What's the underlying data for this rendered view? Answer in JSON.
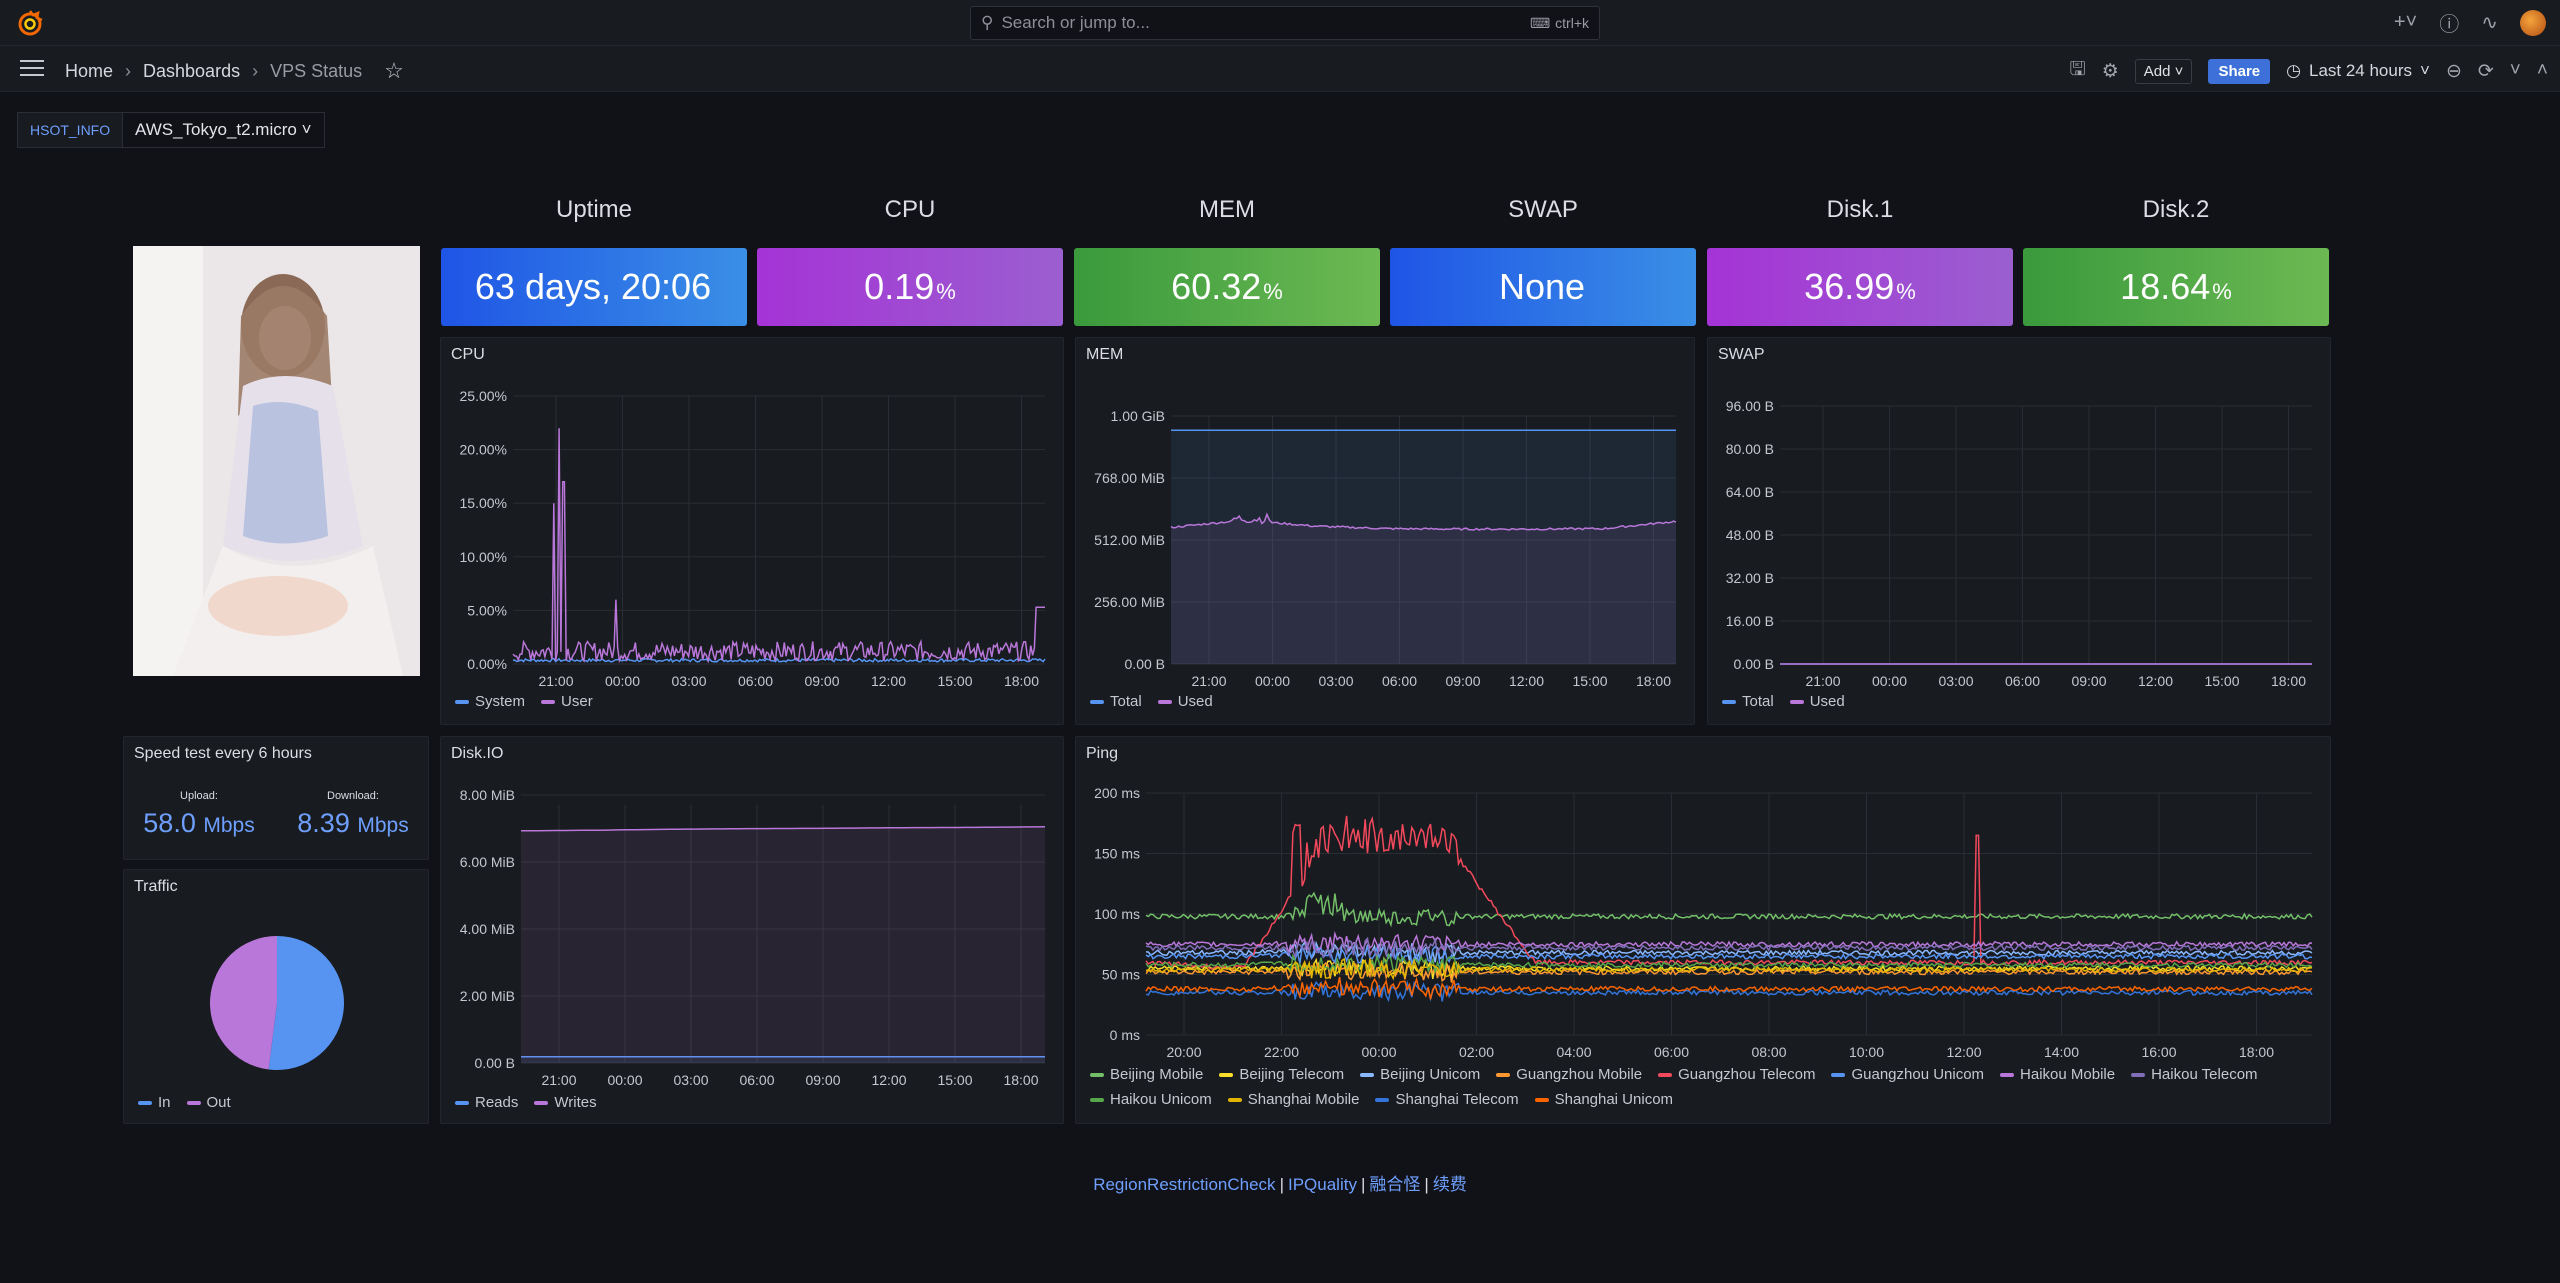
{
  "topbar": {
    "search_placeholder": "Search or jump to...",
    "shortcut": "ctrl+k"
  },
  "navbar": {
    "breadcrumbs": [
      "Home",
      "Dashboards",
      "VPS Status"
    ],
    "add_label": "Add",
    "share_label": "Share",
    "time_range": "Last 24 hours"
  },
  "variables": {
    "label": "HSOT_INFO",
    "value": "AWS_Tokyo_t2.micro"
  },
  "stats": [
    {
      "title": "Uptime",
      "value": "63 days, 20:06",
      "unit": "",
      "color": "blue"
    },
    {
      "title": "CPU",
      "value": "0.19",
      "unit": "%",
      "color": "purple"
    },
    {
      "title": "MEM",
      "value": "60.32",
      "unit": "%",
      "color": "green"
    },
    {
      "title": "SWAP",
      "value": "None",
      "unit": "",
      "color": "blue"
    },
    {
      "title": "Disk.1",
      "value": "36.99",
      "unit": "%",
      "color": "purple"
    },
    {
      "title": "Disk.2",
      "value": "18.64",
      "unit": "%",
      "color": "green"
    }
  ],
  "panels": {
    "cpu": {
      "title": "CPU"
    },
    "mem": {
      "title": "MEM"
    },
    "swap": {
      "title": "SWAP"
    },
    "diskio": {
      "title": "Disk.IO"
    },
    "ping": {
      "title": "Ping"
    },
    "speed": {
      "title": "Speed test every 6 hours",
      "upload_label": "Upload:",
      "upload_value": "58.0",
      "upload_unit": "Mbps",
      "download_label": "Download:",
      "download_value": "8.39",
      "download_unit": "Mbps"
    },
    "traffic": {
      "title": "Traffic"
    }
  },
  "chart_data": [
    {
      "type": "line",
      "id": "cpu",
      "title": "CPU",
      "x_ticks": [
        "21:00",
        "00:00",
        "03:00",
        "06:00",
        "09:00",
        "12:00",
        "15:00",
        "18:00"
      ],
      "y_ticks": [
        "0.00%",
        "5.00%",
        "10.00%",
        "15.00%",
        "20.00%",
        "25.00%"
      ],
      "ylim": [
        0,
        25
      ],
      "series": [
        {
          "name": "System",
          "color": "#5794f2",
          "values": [
            0.3,
            0.3,
            0.3,
            0.3,
            0.3,
            0.3,
            0.3,
            0.3
          ]
        },
        {
          "name": "User",
          "color": "#b877d9",
          "values": [
            0.5,
            1.5,
            22,
            1,
            1,
            0.8,
            0.9,
            5.3
          ]
        }
      ]
    },
    {
      "type": "area",
      "id": "mem",
      "title": "MEM",
      "x_ticks": [
        "21:00",
        "00:00",
        "03:00",
        "06:00",
        "09:00",
        "12:00",
        "15:00",
        "18:00"
      ],
      "y_ticks": [
        "0.00 B",
        "256.00 MiB",
        "512.00 MiB",
        "768.00 MiB",
        "1.00 GiB"
      ],
      "ylim": [
        0,
        1024
      ],
      "series": [
        {
          "name": "Total",
          "color": "#5794f2",
          "values": [
            965,
            965,
            965,
            965,
            965,
            965,
            965,
            965
          ]
        },
        {
          "name": "Used",
          "color": "#b877d9",
          "values": [
            560,
            590,
            565,
            555,
            553,
            553,
            555,
            585
          ]
        }
      ]
    },
    {
      "type": "line",
      "id": "swap",
      "title": "SWAP",
      "x_ticks": [
        "21:00",
        "00:00",
        "03:00",
        "06:00",
        "09:00",
        "12:00",
        "15:00",
        "18:00"
      ],
      "y_ticks": [
        "0.00 B",
        "16.00 B",
        "32.00 B",
        "48.00 B",
        "64.00 B",
        "80.00 B",
        "96.00 B"
      ],
      "ylim": [
        0,
        96
      ],
      "series": [
        {
          "name": "Total",
          "color": "#5794f2",
          "values": [
            0,
            0,
            0,
            0,
            0,
            0,
            0,
            0
          ]
        },
        {
          "name": "Used",
          "color": "#b877d9",
          "values": [
            0,
            0,
            0,
            0,
            0,
            0,
            0,
            0
          ]
        }
      ]
    },
    {
      "type": "area",
      "id": "diskio",
      "title": "Disk.IO",
      "x_ticks": [
        "21:00",
        "00:00",
        "03:00",
        "06:00",
        "09:00",
        "12:00",
        "15:00",
        "18:00"
      ],
      "y_ticks": [
        "0.00 B",
        "2.00 MiB",
        "4.00 MiB",
        "6.00 MiB",
        "8.00 MiB"
      ],
      "ylim": [
        0,
        8.6
      ],
      "series": [
        {
          "name": "Reads",
          "color": "#5794f2",
          "values": [
            0.2,
            0.2,
            0.2,
            0.2,
            0.2,
            0.2,
            0.2,
            0.2
          ]
        },
        {
          "name": "Writes",
          "color": "#b877d9",
          "values": [
            7.45,
            7.47,
            7.5,
            7.52,
            7.53,
            7.55,
            7.56,
            7.58
          ]
        }
      ]
    },
    {
      "type": "line",
      "id": "ping",
      "title": "Ping",
      "x_ticks": [
        "20:00",
        "22:00",
        "00:00",
        "02:00",
        "04:00",
        "06:00",
        "08:00",
        "10:00",
        "12:00",
        "14:00",
        "16:00",
        "18:00"
      ],
      "y_ticks": [
        "0 ms",
        "50 ms",
        "100 ms",
        "150 ms",
        "200 ms"
      ],
      "ylim": [
        0,
        200
      ],
      "series": [
        {
          "name": "Beijing Mobile",
          "color": "#73bf69",
          "values": [
            98,
            98,
            98,
            98,
            98,
            98,
            98,
            98,
            98,
            98,
            98,
            98,
            98
          ]
        },
        {
          "name": "Beijing Telecom",
          "color": "#fade2a",
          "values": [
            55,
            55,
            56,
            55,
            55,
            55,
            55,
            55,
            55,
            55,
            55,
            55,
            55
          ]
        },
        {
          "name": "Beijing Unicom",
          "color": "#8ab8ff",
          "values": [
            68,
            68,
            70,
            68,
            68,
            68,
            68,
            68,
            68,
            68,
            68,
            68,
            68
          ]
        },
        {
          "name": "Guangzhou Mobile",
          "color": "#ff9830",
          "values": [
            52,
            52,
            53,
            52,
            52,
            52,
            52,
            52,
            52,
            52,
            52,
            52,
            52
          ]
        },
        {
          "name": "Guangzhou Telecom",
          "color": "#f2495c",
          "values": [
            60,
            55,
            175,
            170,
            60,
            60,
            60,
            60,
            60,
            60,
            60,
            60,
            60
          ]
        },
        {
          "name": "Guangzhou Unicom",
          "color": "#5794f2",
          "values": [
            65,
            65,
            68,
            65,
            65,
            65,
            65,
            65,
            65,
            65,
            65,
            65,
            65
          ]
        },
        {
          "name": "Haikou Mobile",
          "color": "#b877d9",
          "values": [
            75,
            75,
            76,
            75,
            75,
            75,
            75,
            75,
            75,
            75,
            75,
            75,
            75
          ]
        },
        {
          "name": "Haikou Telecom",
          "color": "#806eb7",
          "values": [
            72,
            72,
            72,
            72,
            72,
            72,
            72,
            72,
            72,
            72,
            72,
            72,
            72
          ]
        },
        {
          "name": "Haikou Unicom",
          "color": "#56a64b",
          "values": [
            58,
            58,
            60,
            58,
            58,
            58,
            58,
            58,
            58,
            58,
            58,
            58,
            58
          ]
        },
        {
          "name": "Shanghai Mobile",
          "color": "#e0b400",
          "values": [
            54,
            54,
            55,
            54,
            54,
            54,
            54,
            54,
            54,
            54,
            54,
            54,
            54
          ]
        },
        {
          "name": "Shanghai Telecom",
          "color": "#3274d9",
          "values": [
            35,
            35,
            36,
            35,
            35,
            35,
            35,
            35,
            35,
            35,
            35,
            35,
            35
          ]
        },
        {
          "name": "Shanghai Unicom",
          "color": "#fa6400",
          "values": [
            38,
            38,
            40,
            38,
            38,
            38,
            38,
            38,
            38,
            38,
            38,
            38,
            38
          ]
        }
      ]
    },
    {
      "type": "pie",
      "id": "traffic",
      "title": "Traffic",
      "categories": [
        "In",
        "Out"
      ],
      "values": [
        52,
        48
      ],
      "colors": [
        "#5794f2",
        "#b877d9"
      ]
    }
  ],
  "footer": {
    "links": [
      "RegionRestrictionCheck",
      "IPQuality",
      "融合怪",
      "续费"
    ]
  }
}
